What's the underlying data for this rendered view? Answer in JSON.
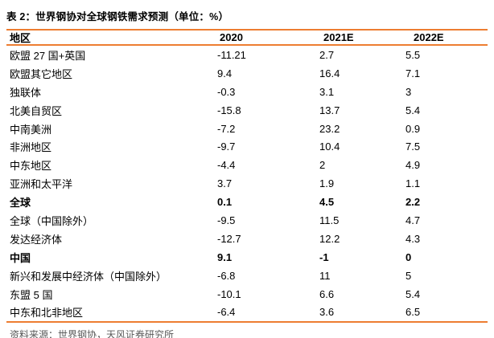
{
  "title": "表 2：世界钢协对全球钢铁需求预测（单位：%）",
  "table": {
    "columns": [
      "地区",
      "2020",
      "2021E",
      "2022E"
    ],
    "rows": [
      {
        "region": "欧盟 27 国+英国",
        "values": [
          "-11.21",
          "2.7",
          "5.5"
        ],
        "bold": false
      },
      {
        "region": "欧盟其它地区",
        "values": [
          "9.4",
          "16.4",
          "7.1"
        ],
        "bold": false
      },
      {
        "region": "独联体",
        "values": [
          "-0.3",
          "3.1",
          "3"
        ],
        "bold": false
      },
      {
        "region": "北美自贸区",
        "values": [
          "-15.8",
          "13.7",
          "5.4"
        ],
        "bold": false
      },
      {
        "region": "中南美洲",
        "values": [
          "-7.2",
          "23.2",
          "0.9"
        ],
        "bold": false
      },
      {
        "region": "非洲地区",
        "values": [
          "-9.7",
          "10.4",
          "7.5"
        ],
        "bold": false
      },
      {
        "region": "中东地区",
        "values": [
          "-4.4",
          "2",
          "4.9"
        ],
        "bold": false
      },
      {
        "region": "亚洲和太平洋",
        "values": [
          "3.7",
          "1.9",
          "1.1"
        ],
        "bold": false
      },
      {
        "region": "全球",
        "values": [
          "0.1",
          "4.5",
          "2.2"
        ],
        "bold": true
      },
      {
        "region": "全球（中国除外）",
        "values": [
          "-9.5",
          "11.5",
          "4.7"
        ],
        "bold": false
      },
      {
        "region": "发达经济体",
        "values": [
          "-12.7",
          "12.2",
          "4.3"
        ],
        "bold": false
      },
      {
        "region": "中国",
        "values": [
          "9.1",
          "-1",
          "0"
        ],
        "bold": true
      },
      {
        "region": "新兴和发展中经济体（中国除外）",
        "values": [
          "-6.8",
          "11",
          "5"
        ],
        "bold": false
      },
      {
        "region": "东盟 5 国",
        "values": [
          "-10.1",
          "6.6",
          "5.4"
        ],
        "bold": false
      },
      {
        "region": "中东和北非地区",
        "values": [
          "-6.4",
          "3.6",
          "6.5"
        ],
        "bold": false
      }
    ]
  },
  "footer": {
    "source": "资料来源：世界钢协，天风证券研究所"
  },
  "colors": {
    "accent": "#ED7D31",
    "footer_text": "#595959",
    "text": "#000000"
  }
}
